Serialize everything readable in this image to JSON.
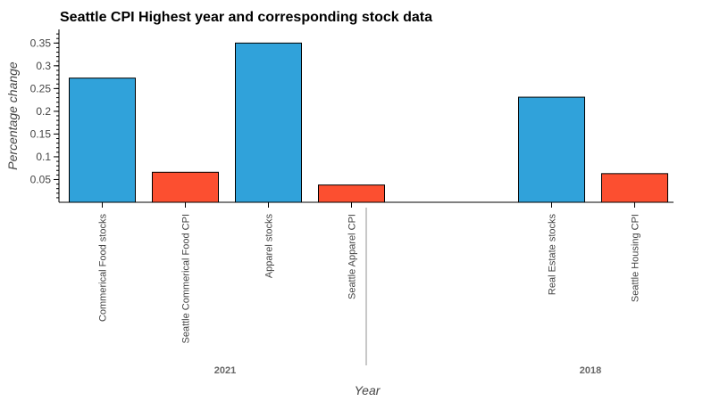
{
  "chart_data": {
    "type": "bar",
    "title": "Seattle CPI Highest year and corresponding stock data",
    "xlabel": "Year",
    "ylabel": "Percentage change",
    "ylim": [
      0,
      0.38
    ],
    "yticks": [
      0.05,
      0.1,
      0.15,
      0.2,
      0.25,
      0.3,
      0.35
    ],
    "ytick_labels": [
      "0.05",
      "0.1",
      "0.15",
      "0.2",
      "0.25",
      "0.3",
      "0.35"
    ],
    "grid": false,
    "groups": [
      {
        "label": "2021",
        "bars": [
          {
            "category": "Commerical Food stocks",
            "value": 0.273,
            "color": "#30a2da"
          },
          {
            "category": "Seattle Commerical Food CPI",
            "value": 0.066,
            "color": "#fc4f30"
          },
          {
            "category": "Apparel stocks",
            "value": 0.35,
            "color": "#30a2da"
          },
          {
            "category": "Seattle Apparel CPI",
            "value": 0.038,
            "color": "#fc4f30"
          }
        ]
      },
      {
        "label": "2018",
        "bars": [
          {
            "category": "Real Estate stocks",
            "value": 0.231,
            "color": "#30a2da"
          },
          {
            "category": "Seattle Housing CPI",
            "value": 0.063,
            "color": "#fc4f30"
          }
        ]
      }
    ]
  }
}
